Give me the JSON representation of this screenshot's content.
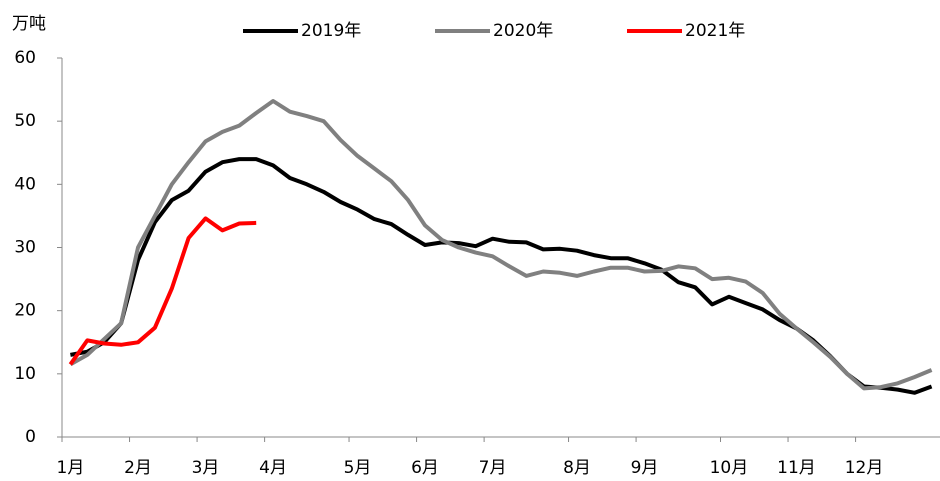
{
  "chart_data": {
    "type": "line",
    "y_label": "万吨",
    "categories": [
      "1月",
      null,
      null,
      null,
      "2月",
      null,
      null,
      null,
      "3月",
      null,
      null,
      null,
      "4月",
      null,
      null,
      null,
      null,
      "5月",
      null,
      null,
      null,
      "6月",
      null,
      null,
      null,
      "7月",
      null,
      null,
      null,
      null,
      "8月",
      null,
      null,
      null,
      "9月",
      null,
      null,
      null,
      null,
      "10月",
      null,
      null,
      null,
      "11月",
      null,
      null,
      null,
      "12月",
      null,
      null,
      null,
      null
    ],
    "series": [
      {
        "name": "2019年",
        "color": "#000000",
        "values": [
          13,
          13.5,
          15,
          18,
          28,
          34,
          37.5,
          39,
          42,
          43.5,
          44,
          44,
          43,
          41,
          40,
          38.8,
          37.2,
          36,
          34.5,
          33.7,
          32,
          30.4,
          30.8,
          30.7,
          30.2,
          31.4,
          30.9,
          30.8,
          29.7,
          29.8,
          29.5,
          28.8,
          28.3,
          28.3,
          27.5,
          26.5,
          24.5,
          23.7,
          21,
          22.2,
          21.2,
          20.2,
          18.5,
          17.2,
          15.3,
          12.8,
          10,
          8,
          7.8,
          7.5,
          7,
          8
        ]
      },
      {
        "name": "2020年",
        "color": "#808080",
        "values": [
          11.5,
          13,
          15.5,
          18,
          30,
          35,
          40,
          43.5,
          46.8,
          48.3,
          49.3,
          51.3,
          53.2,
          51.5,
          50.8,
          50,
          47,
          44.5,
          42.5,
          40.5,
          37.5,
          33.5,
          31.2,
          30,
          29.2,
          28.6,
          27,
          25.5,
          26.2,
          26,
          25.5,
          26.2,
          26.8,
          26.8,
          26.2,
          26.3,
          27,
          26.7,
          25,
          25.2,
          24.6,
          22.8,
          19.5,
          17.2,
          15,
          12.7,
          10,
          7.7,
          7.9,
          8.5,
          9.5,
          10.6
        ]
      },
      {
        "name": "2021年",
        "color": "#ff0000",
        "values": [
          11.5,
          15.3,
          14.8,
          14.6,
          15,
          17.3,
          23.5,
          31.5,
          34.6,
          32.7,
          33.8,
          33.9,
          null,
          null,
          null,
          null,
          null,
          null,
          null,
          null,
          null,
          null,
          null,
          null,
          null,
          null,
          null,
          null,
          null,
          null,
          null,
          null,
          null,
          null,
          null,
          null,
          null,
          null,
          null,
          null,
          null,
          null,
          null,
          null,
          null,
          null,
          null,
          null,
          null,
          null,
          null,
          null
        ]
      }
    ],
    "ylim": [
      0,
      60
    ],
    "yticks": [
      0,
      10,
      20,
      30,
      40,
      50,
      60
    ],
    "grid": false
  }
}
